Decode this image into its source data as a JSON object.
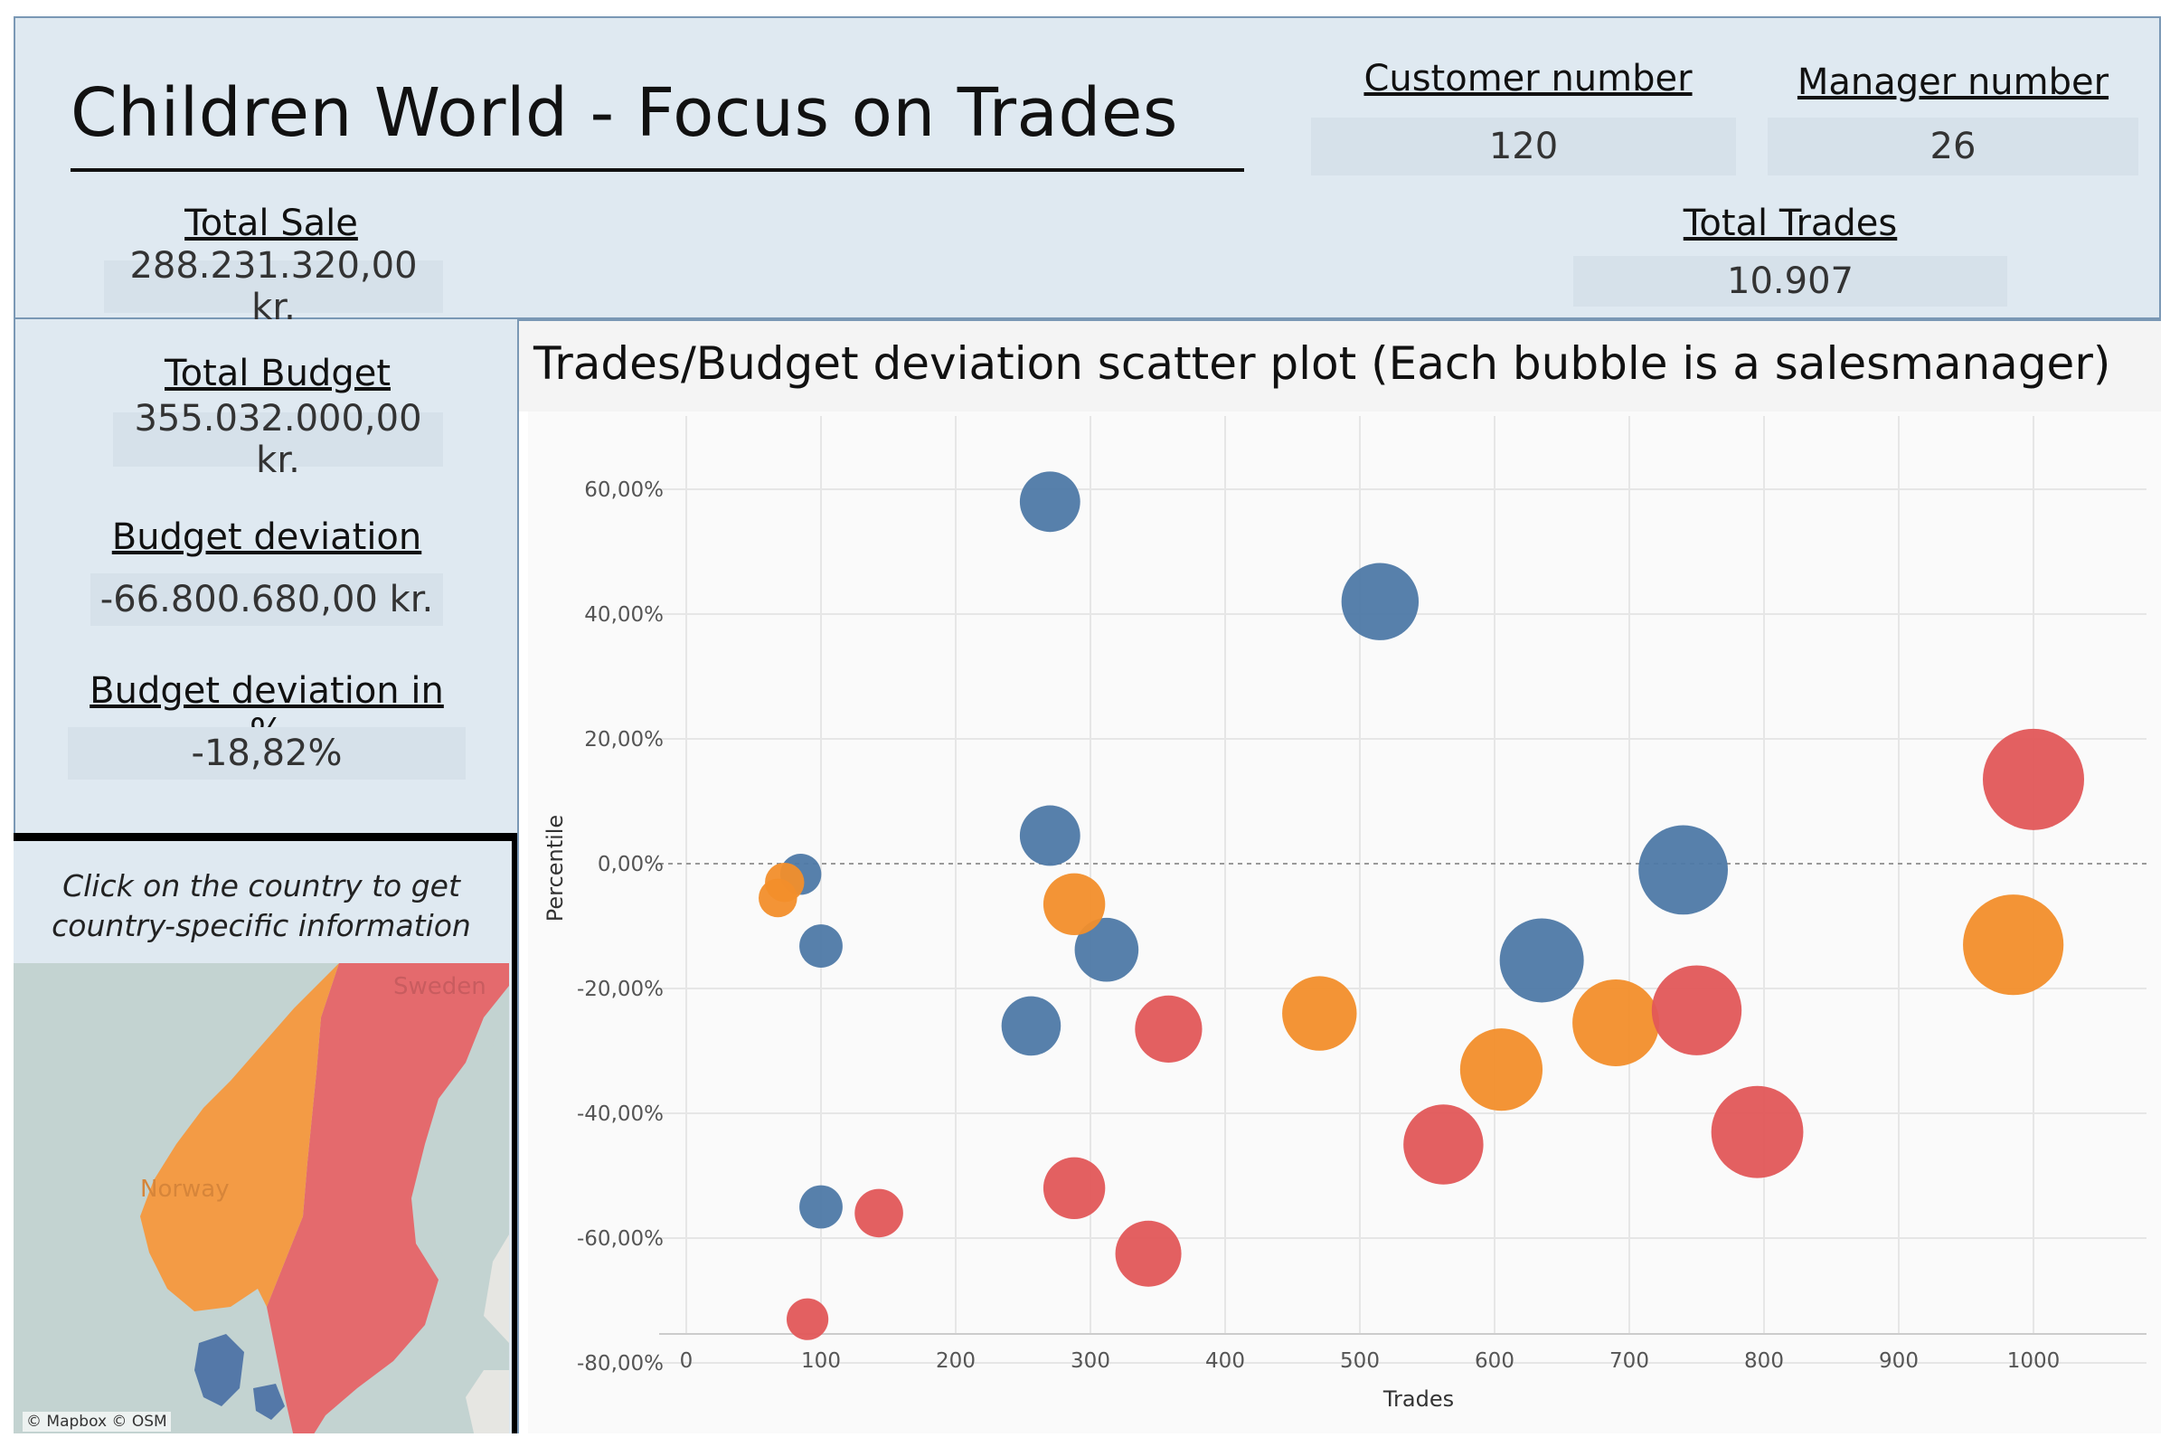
{
  "header": {
    "title": "Children World - Focus on Trades",
    "customer_number_label": "Customer number",
    "customer_number_value": "120",
    "manager_number_label": "Manager number",
    "manager_number_value": "26",
    "total_trades_label": "Total Trades",
    "total_trades_value": "10.907"
  },
  "kpis": {
    "total_sale_label": "Total Sale",
    "total_sale_value": "288.231.320,00 kr.",
    "total_budget_label": "Total Budget",
    "total_budget_value": "355.032.000,00 kr.",
    "budget_deviation_label": "Budget deviation",
    "budget_deviation_value": "-66.800.680,00 kr.",
    "budget_deviation_pct_label": "Budget deviation in %",
    "budget_deviation_pct_value": "-18,82%"
  },
  "map": {
    "caption_line1": "Click on the country to get",
    "caption_line2": "country-specific information",
    "label_norway": "Norway",
    "label_sweden": "Sweden",
    "attribution": "© Mapbox © OSM",
    "colors": {
      "norway": "#f39b45",
      "sweden": "#e46a6d",
      "denmark": "#5478a8",
      "water": "#c3d3d1",
      "land": "#e6e6e2"
    }
  },
  "chart_data": {
    "type": "scatter",
    "title": "Trades/Budget deviation scatter plot  (Each bubble is a salesmanager)",
    "xlabel": "Trades",
    "ylabel": "Percentile",
    "xlim": [
      0,
      1090
    ],
    "ylim": [
      -82,
      66
    ],
    "x_ticks": [
      0,
      100,
      200,
      300,
      400,
      500,
      600,
      700,
      800,
      900,
      1000
    ],
    "x_tick_labels": [
      "0",
      "100",
      "200",
      "300",
      "400",
      "500",
      "600",
      "700",
      "800",
      "900",
      "1000"
    ],
    "y_ticks": [
      60,
      40,
      20,
      0,
      -20,
      -40,
      -60,
      -80
    ],
    "y_tick_labels": [
      "60,00%",
      "40,00%",
      "20,00%",
      "0,00%",
      "-20,00%",
      "-40,00%",
      "-60,00%",
      "-80,00%"
    ],
    "reference_line_y": 0,
    "grid": true,
    "colors": {
      "blue": "#4e79a7",
      "orange": "#f28e2b",
      "red": "#e15759"
    },
    "points": [
      {
        "x": 270,
        "y": 58,
        "size": 270,
        "color": "blue"
      },
      {
        "x": 515,
        "y": 42,
        "size": 515,
        "color": "blue"
      },
      {
        "x": 270,
        "y": 4.5,
        "size": 270,
        "color": "blue"
      },
      {
        "x": 85,
        "y": -1.7,
        "size": 85,
        "color": "blue"
      },
      {
        "x": 100,
        "y": -13.2,
        "size": 100,
        "color": "blue"
      },
      {
        "x": 312,
        "y": -13.8,
        "size": 312,
        "color": "blue"
      },
      {
        "x": 256,
        "y": -26,
        "size": 256,
        "color": "blue"
      },
      {
        "x": 635,
        "y": -15.5,
        "size": 635,
        "color": "blue"
      },
      {
        "x": 740,
        "y": -1,
        "size": 740,
        "color": "blue"
      },
      {
        "x": 100,
        "y": -55,
        "size": 100,
        "color": "blue"
      },
      {
        "x": 73,
        "y": -3,
        "size": 73,
        "color": "orange"
      },
      {
        "x": 68,
        "y": -5.5,
        "size": 68,
        "color": "orange"
      },
      {
        "x": 288,
        "y": -6.5,
        "size": 288,
        "color": "orange"
      },
      {
        "x": 470,
        "y": -24,
        "size": 470,
        "color": "orange"
      },
      {
        "x": 605,
        "y": -33,
        "size": 605,
        "color": "orange"
      },
      {
        "x": 690,
        "y": -25.5,
        "size": 690,
        "color": "orange"
      },
      {
        "x": 985,
        "y": -13,
        "size": 985,
        "color": "orange"
      },
      {
        "x": 358,
        "y": -26.5,
        "size": 358,
        "color": "red"
      },
      {
        "x": 143,
        "y": -56,
        "size": 143,
        "color": "red"
      },
      {
        "x": 90,
        "y": -73,
        "size": 90,
        "color": "red"
      },
      {
        "x": 288,
        "y": -52,
        "size": 288,
        "color": "red"
      },
      {
        "x": 343,
        "y": -62.5,
        "size": 343,
        "color": "red"
      },
      {
        "x": 562,
        "y": -45,
        "size": 562,
        "color": "red"
      },
      {
        "x": 750,
        "y": -23.5,
        "size": 750,
        "color": "red"
      },
      {
        "x": 795,
        "y": -43,
        "size": 795,
        "color": "red"
      },
      {
        "x": 1000,
        "y": 13.5,
        "size": 1000,
        "color": "red"
      }
    ]
  }
}
